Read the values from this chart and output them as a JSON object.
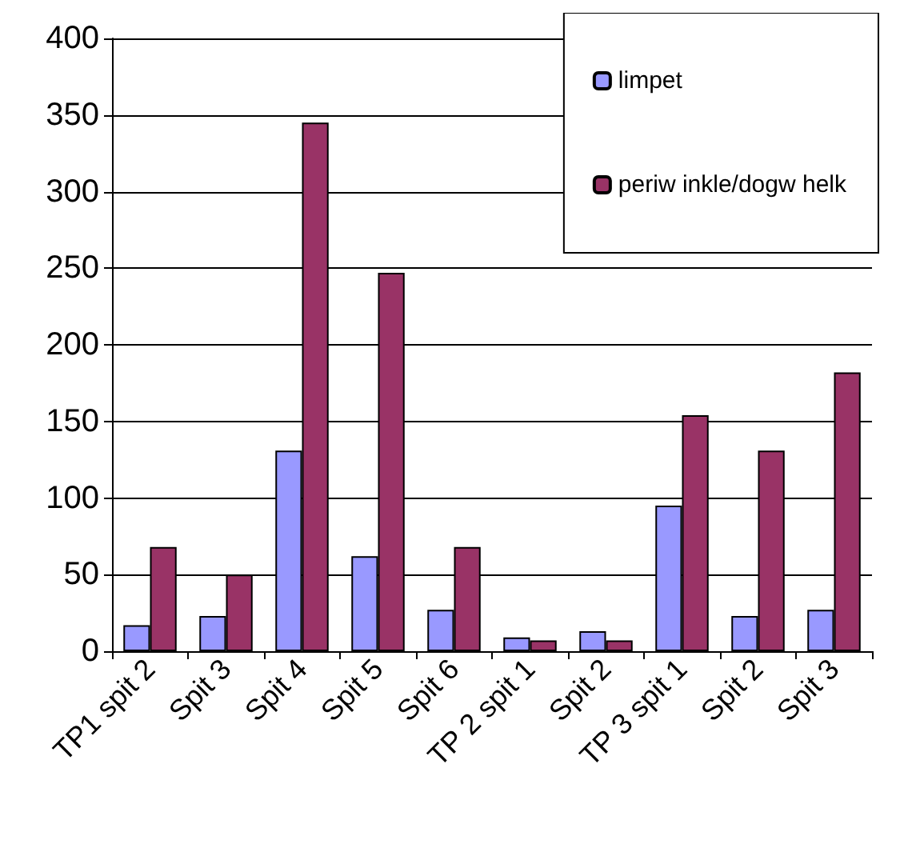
{
  "chart_data": {
    "type": "bar",
    "categories": [
      "TP1 spit 2",
      "Spit 3",
      "Spit 4",
      "Spit 5",
      "Spit 6",
      "TP 2 spit 1",
      "Spit 2",
      "TP 3 spit 1",
      "Spit 2",
      "Spit 3"
    ],
    "series": [
      {
        "name": "limpet",
        "color": "#9999ff",
        "values": [
          17,
          23,
          131,
          62,
          27,
          9,
          13,
          95,
          23,
          27
        ]
      },
      {
        "name": "periw inkle/dogw helk",
        "color": "#993366",
        "values": [
          68,
          50,
          345,
          247,
          68,
          7,
          7,
          154,
          131,
          182
        ]
      }
    ],
    "ylim": [
      0,
      400
    ],
    "yticks": [
      0,
      50,
      100,
      150,
      200,
      250,
      300,
      350,
      400
    ],
    "grid": "y",
    "legend": "top right"
  }
}
